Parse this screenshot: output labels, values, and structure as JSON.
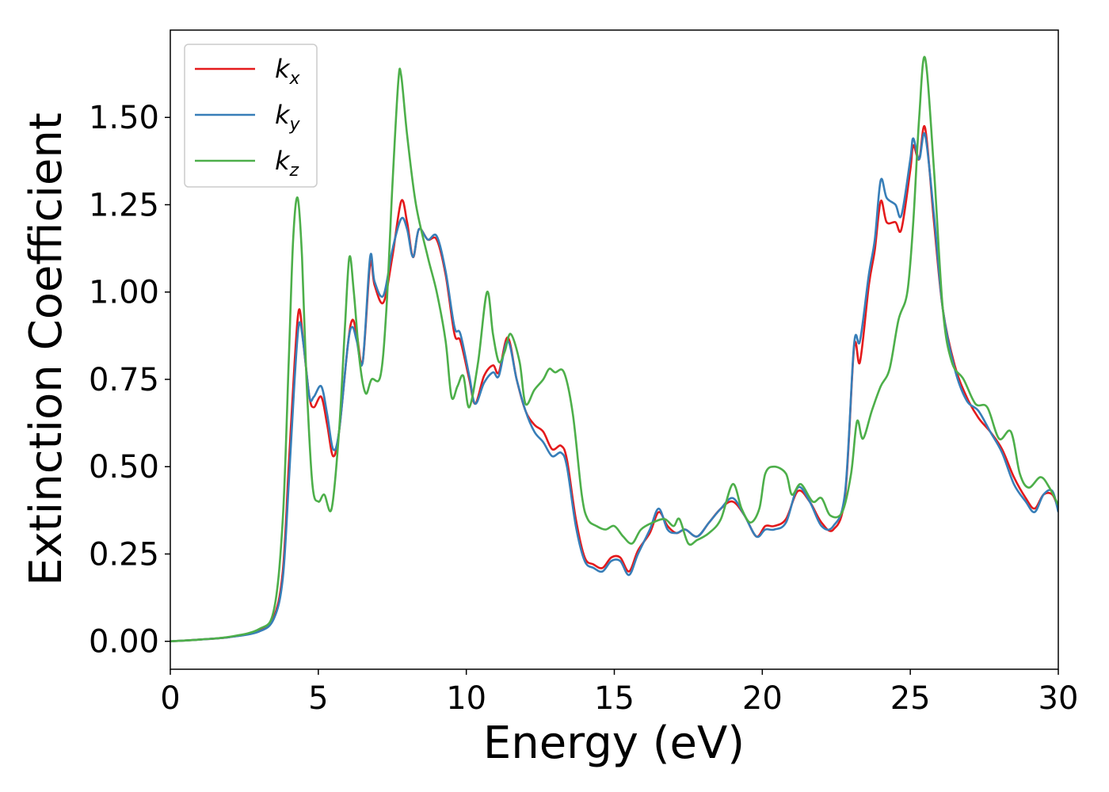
{
  "chart_data": {
    "type": "line",
    "title": "",
    "xlabel": "Energy (eV)",
    "ylabel": "Extinction Coefficient",
    "xlim": [
      0,
      30
    ],
    "ylim": [
      -0.08,
      1.75
    ],
    "xticks": [
      0,
      5,
      10,
      15,
      20,
      25,
      30
    ],
    "xtick_labels": [
      "0",
      "5",
      "10",
      "15",
      "20",
      "25",
      "30"
    ],
    "yticks": [
      0,
      0.25,
      0.5,
      0.75,
      1.0,
      1.25,
      1.5
    ],
    "ytick_labels": [
      "0.00",
      "0.25",
      "0.50",
      "0.75",
      "1.00",
      "1.25",
      "1.50"
    ],
    "grid": false,
    "legend_position": "top-left",
    "series": [
      {
        "name": "k",
        "subscript": "x",
        "color": "#e41a1c",
        "points": [
          [
            0,
            0
          ],
          [
            1,
            0.005
          ],
          [
            2,
            0.012
          ],
          [
            3,
            0.03
          ],
          [
            3.5,
            0.07
          ],
          [
            3.8,
            0.2
          ],
          [
            4.0,
            0.5
          ],
          [
            4.2,
            0.8
          ],
          [
            4.35,
            0.95
          ],
          [
            4.5,
            0.85
          ],
          [
            4.7,
            0.7
          ],
          [
            4.85,
            0.67
          ],
          [
            5.1,
            0.7
          ],
          [
            5.3,
            0.62
          ],
          [
            5.5,
            0.53
          ],
          [
            5.7,
            0.6
          ],
          [
            6.0,
            0.85
          ],
          [
            6.15,
            0.92
          ],
          [
            6.3,
            0.88
          ],
          [
            6.5,
            0.8
          ],
          [
            6.75,
            1.08
          ],
          [
            6.9,
            1.02
          ],
          [
            7.2,
            0.97
          ],
          [
            7.5,
            1.1
          ],
          [
            7.8,
            1.26
          ],
          [
            8.0,
            1.2
          ],
          [
            8.2,
            1.1
          ],
          [
            8.4,
            1.18
          ],
          [
            8.7,
            1.15
          ],
          [
            9.0,
            1.15
          ],
          [
            9.3,
            1.05
          ],
          [
            9.6,
            0.88
          ],
          [
            9.8,
            0.86
          ],
          [
            10.1,
            0.75
          ],
          [
            10.3,
            0.68
          ],
          [
            10.6,
            0.76
          ],
          [
            10.9,
            0.79
          ],
          [
            11.1,
            0.77
          ],
          [
            11.4,
            0.87
          ],
          [
            11.7,
            0.75
          ],
          [
            12.0,
            0.66
          ],
          [
            12.3,
            0.62
          ],
          [
            12.6,
            0.6
          ],
          [
            12.9,
            0.55
          ],
          [
            13.2,
            0.56
          ],
          [
            13.4,
            0.52
          ],
          [
            13.7,
            0.35
          ],
          [
            14.0,
            0.24
          ],
          [
            14.3,
            0.22
          ],
          [
            14.6,
            0.21
          ],
          [
            14.9,
            0.24
          ],
          [
            15.2,
            0.24
          ],
          [
            15.5,
            0.2
          ],
          [
            15.8,
            0.26
          ],
          [
            16.2,
            0.31
          ],
          [
            16.5,
            0.37
          ],
          [
            16.8,
            0.33
          ],
          [
            17.1,
            0.31
          ],
          [
            17.4,
            0.32
          ],
          [
            17.8,
            0.3
          ],
          [
            18.2,
            0.34
          ],
          [
            18.6,
            0.38
          ],
          [
            19.0,
            0.4
          ],
          [
            19.4,
            0.36
          ],
          [
            19.8,
            0.3
          ],
          [
            20.1,
            0.33
          ],
          [
            20.4,
            0.33
          ],
          [
            20.8,
            0.35
          ],
          [
            21.2,
            0.43
          ],
          [
            21.6,
            0.4
          ],
          [
            22.0,
            0.34
          ],
          [
            22.4,
            0.32
          ],
          [
            22.8,
            0.42
          ],
          [
            23.1,
            0.84
          ],
          [
            23.3,
            0.8
          ],
          [
            23.6,
            1.02
          ],
          [
            23.8,
            1.12
          ],
          [
            24.0,
            1.26
          ],
          [
            24.2,
            1.2
          ],
          [
            24.5,
            1.2
          ],
          [
            24.7,
            1.18
          ],
          [
            25.0,
            1.35
          ],
          [
            25.1,
            1.42
          ],
          [
            25.3,
            1.38
          ],
          [
            25.5,
            1.47
          ],
          [
            25.8,
            1.2
          ],
          [
            26.1,
            0.95
          ],
          [
            26.5,
            0.79
          ],
          [
            26.9,
            0.7
          ],
          [
            27.3,
            0.64
          ],
          [
            27.7,
            0.6
          ],
          [
            28.1,
            0.55
          ],
          [
            28.5,
            0.47
          ],
          [
            28.9,
            0.41
          ],
          [
            29.2,
            0.38
          ],
          [
            29.5,
            0.42
          ],
          [
            29.8,
            0.42
          ],
          [
            30.0,
            0.38
          ]
        ]
      },
      {
        "name": "k",
        "subscript": "y",
        "color": "#377eb8",
        "points": [
          [
            0,
            0
          ],
          [
            1,
            0.005
          ],
          [
            2,
            0.012
          ],
          [
            3,
            0.028
          ],
          [
            3.5,
            0.065
          ],
          [
            3.8,
            0.18
          ],
          [
            4.0,
            0.45
          ],
          [
            4.2,
            0.75
          ],
          [
            4.35,
            0.91
          ],
          [
            4.5,
            0.85
          ],
          [
            4.7,
            0.7
          ],
          [
            4.85,
            0.7
          ],
          [
            5.1,
            0.73
          ],
          [
            5.3,
            0.65
          ],
          [
            5.5,
            0.55
          ],
          [
            5.7,
            0.6
          ],
          [
            6.0,
            0.85
          ],
          [
            6.15,
            0.9
          ],
          [
            6.3,
            0.86
          ],
          [
            6.5,
            0.8
          ],
          [
            6.75,
            1.1
          ],
          [
            6.9,
            1.03
          ],
          [
            7.2,
            0.99
          ],
          [
            7.5,
            1.12
          ],
          [
            7.8,
            1.21
          ],
          [
            8.0,
            1.18
          ],
          [
            8.2,
            1.1
          ],
          [
            8.4,
            1.18
          ],
          [
            8.7,
            1.15
          ],
          [
            9.0,
            1.16
          ],
          [
            9.3,
            1.06
          ],
          [
            9.6,
            0.9
          ],
          [
            9.8,
            0.88
          ],
          [
            10.1,
            0.76
          ],
          [
            10.3,
            0.68
          ],
          [
            10.6,
            0.74
          ],
          [
            10.9,
            0.77
          ],
          [
            11.1,
            0.76
          ],
          [
            11.4,
            0.86
          ],
          [
            11.7,
            0.75
          ],
          [
            12.0,
            0.66
          ],
          [
            12.3,
            0.6
          ],
          [
            12.6,
            0.57
          ],
          [
            12.9,
            0.53
          ],
          [
            13.2,
            0.54
          ],
          [
            13.4,
            0.5
          ],
          [
            13.7,
            0.33
          ],
          [
            14.0,
            0.23
          ],
          [
            14.3,
            0.21
          ],
          [
            14.6,
            0.2
          ],
          [
            14.9,
            0.23
          ],
          [
            15.2,
            0.23
          ],
          [
            15.5,
            0.19
          ],
          [
            15.8,
            0.25
          ],
          [
            16.2,
            0.32
          ],
          [
            16.5,
            0.38
          ],
          [
            16.8,
            0.32
          ],
          [
            17.1,
            0.31
          ],
          [
            17.4,
            0.32
          ],
          [
            17.8,
            0.3
          ],
          [
            18.2,
            0.34
          ],
          [
            18.6,
            0.38
          ],
          [
            19.0,
            0.41
          ],
          [
            19.4,
            0.36
          ],
          [
            19.8,
            0.3
          ],
          [
            20.1,
            0.32
          ],
          [
            20.4,
            0.32
          ],
          [
            20.8,
            0.34
          ],
          [
            21.2,
            0.44
          ],
          [
            21.6,
            0.4
          ],
          [
            22.0,
            0.33
          ],
          [
            22.4,
            0.33
          ],
          [
            22.8,
            0.43
          ],
          [
            23.1,
            0.85
          ],
          [
            23.3,
            0.86
          ],
          [
            23.6,
            1.05
          ],
          [
            23.8,
            1.15
          ],
          [
            24.0,
            1.32
          ],
          [
            24.2,
            1.27
          ],
          [
            24.5,
            1.25
          ],
          [
            24.7,
            1.22
          ],
          [
            25.0,
            1.38
          ],
          [
            25.1,
            1.44
          ],
          [
            25.3,
            1.38
          ],
          [
            25.5,
            1.45
          ],
          [
            25.8,
            1.22
          ],
          [
            26.1,
            0.95
          ],
          [
            26.5,
            0.78
          ],
          [
            26.9,
            0.69
          ],
          [
            27.3,
            0.66
          ],
          [
            27.7,
            0.6
          ],
          [
            28.1,
            0.54
          ],
          [
            28.5,
            0.45
          ],
          [
            28.9,
            0.4
          ],
          [
            29.2,
            0.37
          ],
          [
            29.5,
            0.42
          ],
          [
            29.8,
            0.43
          ],
          [
            30.0,
            0.37
          ]
        ]
      },
      {
        "name": "k",
        "subscript": "z",
        "color": "#4daf4a",
        "points": [
          [
            0,
            0
          ],
          [
            1,
            0.005
          ],
          [
            2,
            0.013
          ],
          [
            3,
            0.035
          ],
          [
            3.5,
            0.09
          ],
          [
            3.8,
            0.35
          ],
          [
            4.0,
            0.8
          ],
          [
            4.15,
            1.15
          ],
          [
            4.3,
            1.27
          ],
          [
            4.45,
            1.1
          ],
          [
            4.6,
            0.75
          ],
          [
            4.8,
            0.45
          ],
          [
            5.0,
            0.4
          ],
          [
            5.2,
            0.42
          ],
          [
            5.45,
            0.38
          ],
          [
            5.7,
            0.6
          ],
          [
            5.9,
            0.9
          ],
          [
            6.05,
            1.1
          ],
          [
            6.2,
            1.0
          ],
          [
            6.4,
            0.8
          ],
          [
            6.6,
            0.71
          ],
          [
            6.8,
            0.75
          ],
          [
            7.1,
            0.76
          ],
          [
            7.3,
            0.95
          ],
          [
            7.5,
            1.3
          ],
          [
            7.7,
            1.6
          ],
          [
            7.8,
            1.62
          ],
          [
            8.0,
            1.45
          ],
          [
            8.3,
            1.25
          ],
          [
            8.7,
            1.1
          ],
          [
            9.0,
            1.0
          ],
          [
            9.3,
            0.86
          ],
          [
            9.5,
            0.7
          ],
          [
            9.7,
            0.73
          ],
          [
            9.9,
            0.76
          ],
          [
            10.1,
            0.67
          ],
          [
            10.4,
            0.8
          ],
          [
            10.7,
            1.0
          ],
          [
            10.9,
            0.88
          ],
          [
            11.1,
            0.8
          ],
          [
            11.3,
            0.83
          ],
          [
            11.5,
            0.88
          ],
          [
            11.8,
            0.8
          ],
          [
            12.0,
            0.68
          ],
          [
            12.3,
            0.72
          ],
          [
            12.6,
            0.75
          ],
          [
            12.8,
            0.78
          ],
          [
            13.0,
            0.77
          ],
          [
            13.3,
            0.77
          ],
          [
            13.6,
            0.65
          ],
          [
            13.9,
            0.42
          ],
          [
            14.1,
            0.35
          ],
          [
            14.4,
            0.33
          ],
          [
            14.7,
            0.32
          ],
          [
            15.0,
            0.33
          ],
          [
            15.3,
            0.3
          ],
          [
            15.6,
            0.28
          ],
          [
            15.9,
            0.32
          ],
          [
            16.3,
            0.34
          ],
          [
            16.7,
            0.35
          ],
          [
            17.0,
            0.33
          ],
          [
            17.2,
            0.35
          ],
          [
            17.5,
            0.28
          ],
          [
            17.8,
            0.29
          ],
          [
            18.2,
            0.31
          ],
          [
            18.6,
            0.35
          ],
          [
            19.0,
            0.45
          ],
          [
            19.3,
            0.38
          ],
          [
            19.6,
            0.34
          ],
          [
            19.9,
            0.38
          ],
          [
            20.1,
            0.48
          ],
          [
            20.4,
            0.5
          ],
          [
            20.8,
            0.48
          ],
          [
            21.0,
            0.42
          ],
          [
            21.3,
            0.45
          ],
          [
            21.7,
            0.4
          ],
          [
            22.0,
            0.41
          ],
          [
            22.3,
            0.36
          ],
          [
            22.7,
            0.37
          ],
          [
            23.0,
            0.48
          ],
          [
            23.2,
            0.63
          ],
          [
            23.4,
            0.58
          ],
          [
            23.7,
            0.66
          ],
          [
            24.0,
            0.73
          ],
          [
            24.3,
            0.78
          ],
          [
            24.6,
            0.92
          ],
          [
            24.9,
            1.0
          ],
          [
            25.1,
            1.2
          ],
          [
            25.3,
            1.5
          ],
          [
            25.5,
            1.67
          ],
          [
            25.8,
            1.35
          ],
          [
            26.1,
            0.95
          ],
          [
            26.4,
            0.8
          ],
          [
            26.8,
            0.75
          ],
          [
            27.2,
            0.68
          ],
          [
            27.6,
            0.67
          ],
          [
            28.0,
            0.58
          ],
          [
            28.4,
            0.6
          ],
          [
            28.7,
            0.48
          ],
          [
            29.0,
            0.44
          ],
          [
            29.4,
            0.47
          ],
          [
            29.7,
            0.44
          ],
          [
            30.0,
            0.39
          ]
        ]
      }
    ]
  }
}
